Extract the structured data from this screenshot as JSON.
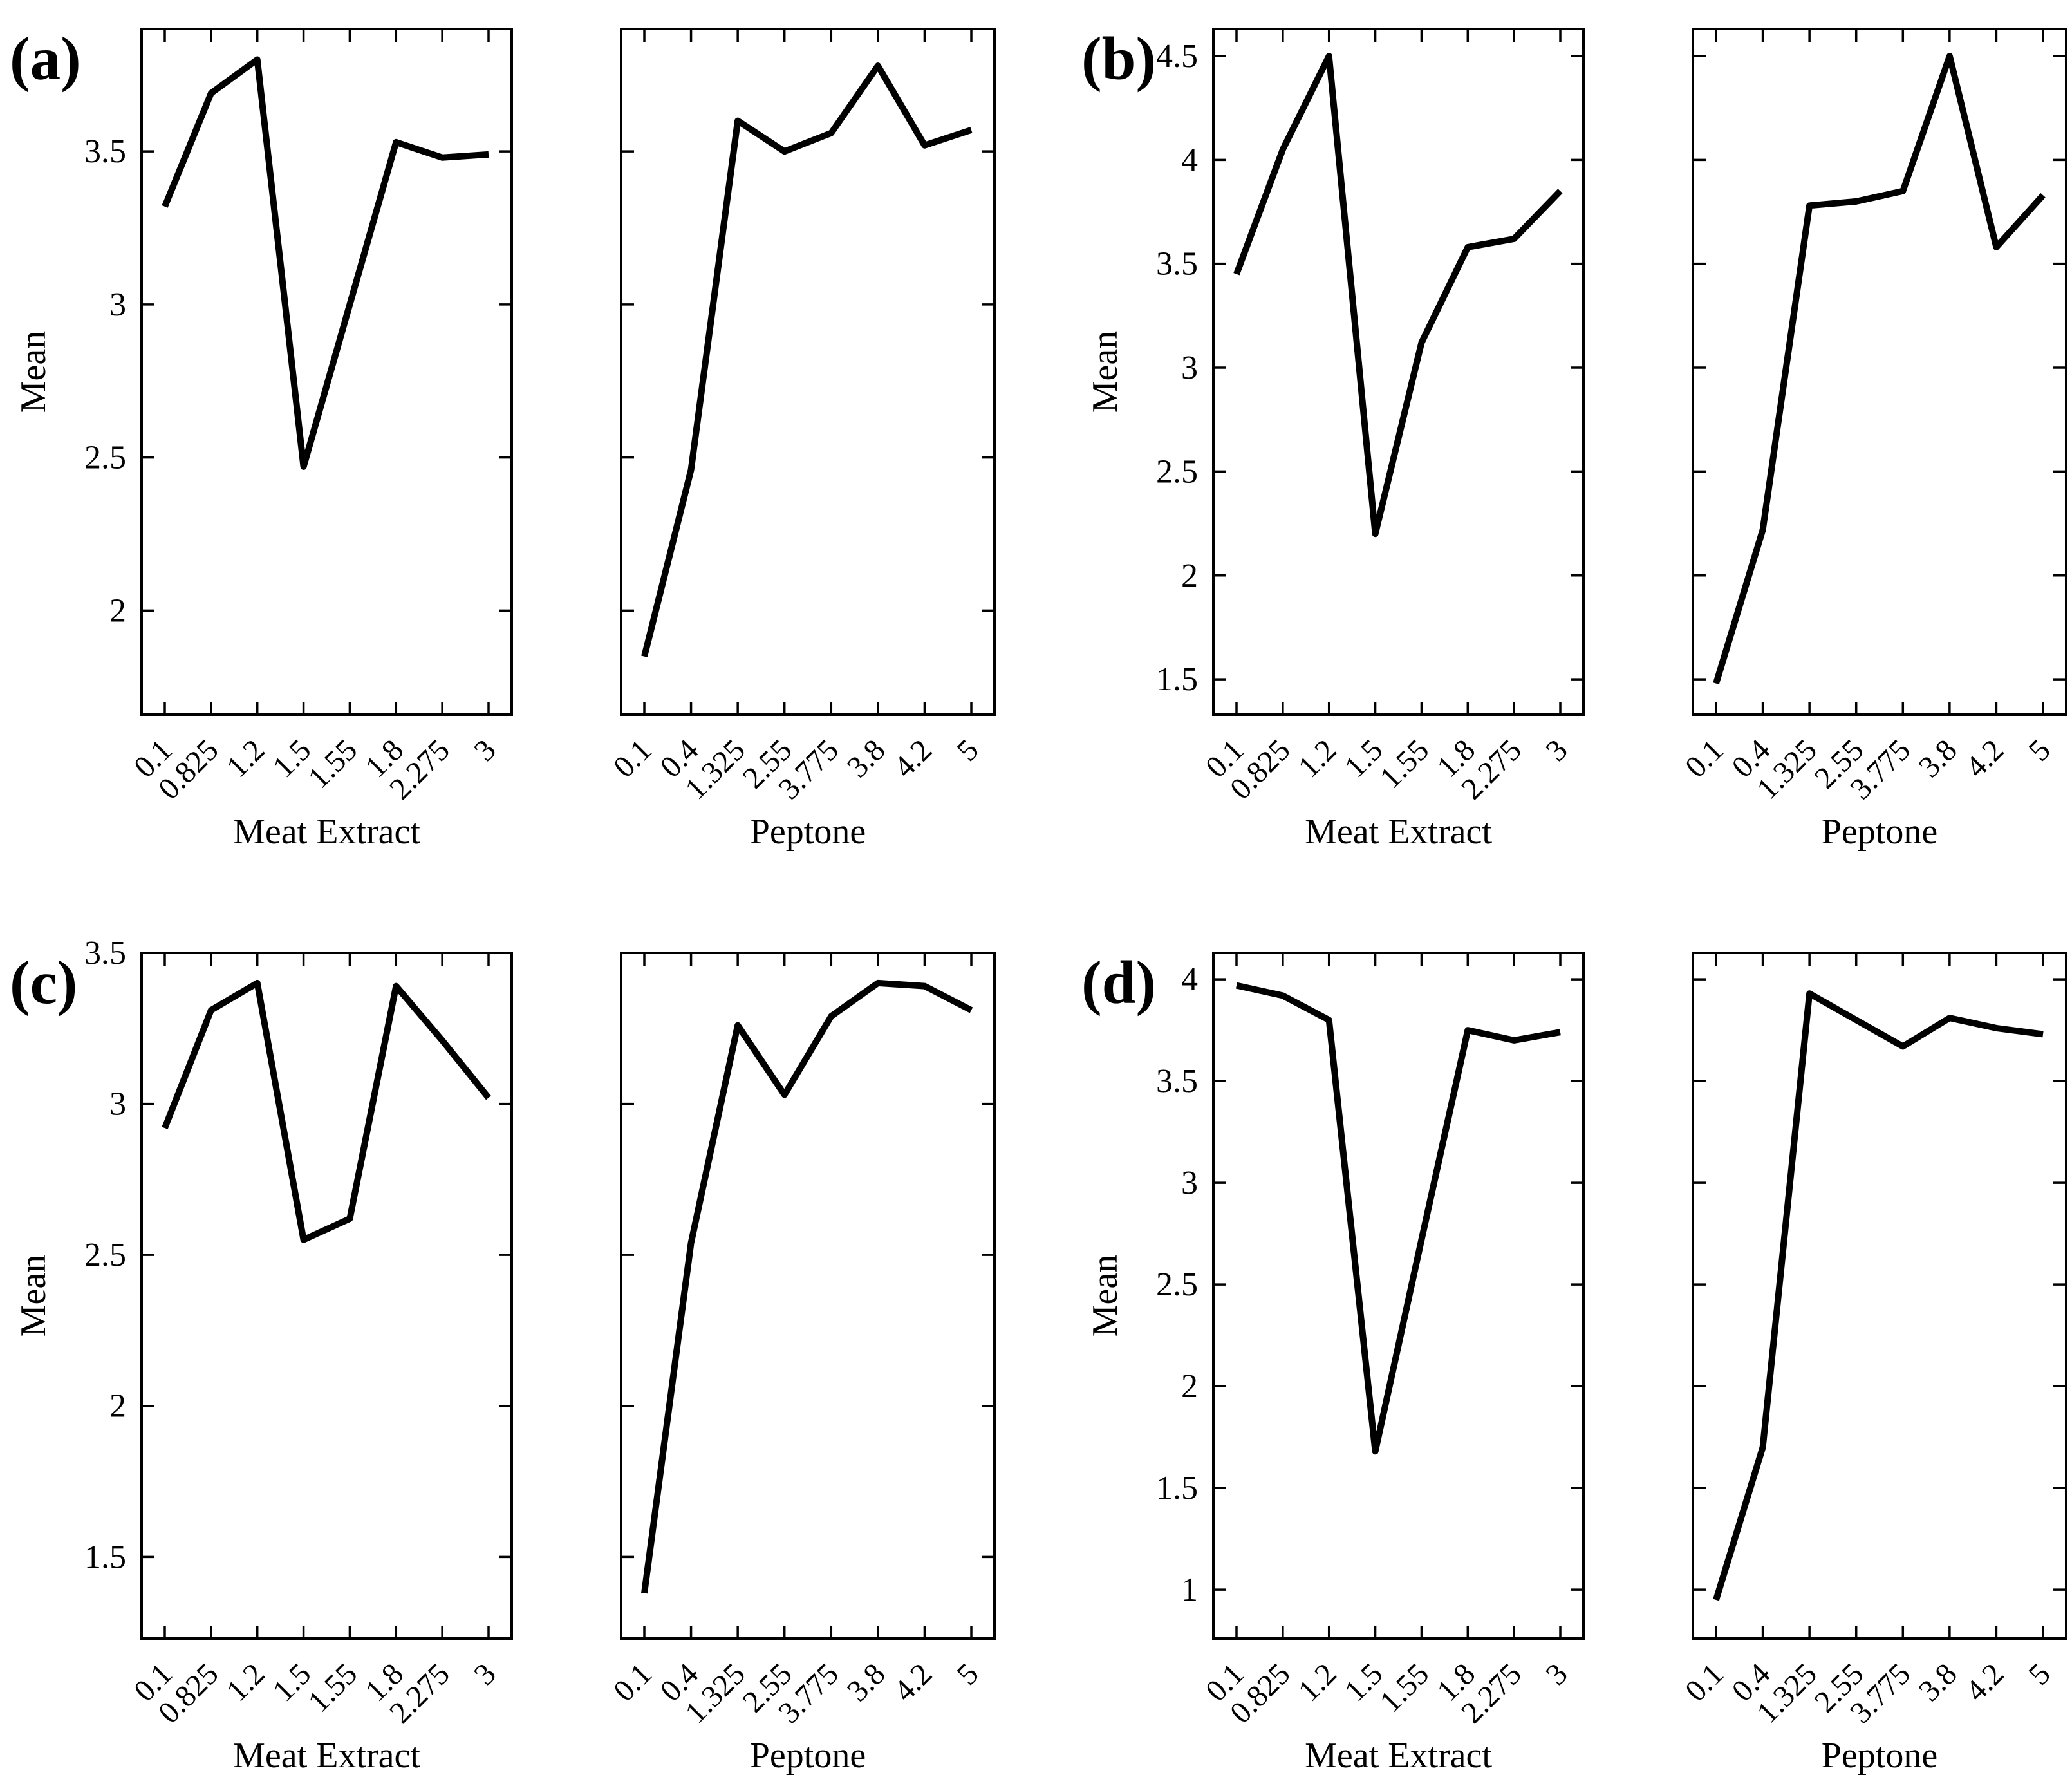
{
  "figure": {
    "background": "#ffffff",
    "line_color": "#000000",
    "ylabel": "Mean",
    "layout": {
      "panel_grid": "2x2",
      "charts_per_panel": 2,
      "grid_lines": false,
      "frame": true,
      "tick_direction": "in",
      "x_tick_label_rotation_deg": 45,
      "legend": "none"
    }
  },
  "chart_data": [
    {
      "panel_label": "(a)",
      "ylabel": "Mean",
      "ylim": [
        1.66,
        3.9
      ],
      "yticks": [
        2,
        2.5,
        3,
        3.5
      ],
      "charts": [
        {
          "type": "line",
          "xlabel": "Meat Extract",
          "categories": [
            "0.1",
            "0.825",
            "1.2",
            "1.5",
            "1.55",
            "1.8",
            "2.275",
            "3"
          ],
          "values": [
            3.32,
            3.69,
            3.8,
            2.47,
            3.0,
            3.53,
            3.48,
            3.49
          ],
          "ytick_labels_visible": true
        },
        {
          "type": "line",
          "xlabel": "Peptone",
          "categories": [
            "0.1",
            "0.4",
            "1.325",
            "2.55",
            "3.775",
            "3.8",
            "4.2",
            "5"
          ],
          "values": [
            1.85,
            2.46,
            3.6,
            3.5,
            3.56,
            3.78,
            3.52,
            3.57
          ],
          "ytick_labels_visible": false
        }
      ]
    },
    {
      "panel_label": "(b)",
      "ylabel": "Mean",
      "ylim": [
        1.33,
        4.63
      ],
      "yticks": [
        1.5,
        2,
        2.5,
        3,
        3.5,
        4,
        4.5
      ],
      "charts": [
        {
          "type": "line",
          "xlabel": "Meat Extract",
          "categories": [
            "0.1",
            "0.825",
            "1.2",
            "1.5",
            "1.55",
            "1.8",
            "2.275",
            "3"
          ],
          "values": [
            3.45,
            4.05,
            4.5,
            2.2,
            3.12,
            3.58,
            3.62,
            3.85
          ],
          "ytick_labels_visible": true
        },
        {
          "type": "line",
          "xlabel": "Peptone",
          "categories": [
            "0.1",
            "0.4",
            "1.325",
            "2.55",
            "3.775",
            "3.8",
            "4.2",
            "5"
          ],
          "values": [
            1.48,
            2.22,
            3.78,
            3.8,
            3.85,
            4.5,
            3.58,
            3.83
          ],
          "ytick_labels_visible": false
        }
      ]
    },
    {
      "panel_label": "(c)",
      "ylabel": "Mean",
      "ylim": [
        1.23,
        3.5
      ],
      "yticks": [
        1.5,
        2,
        2.5,
        3,
        3.5
      ],
      "charts": [
        {
          "type": "line",
          "xlabel": "Meat Extract",
          "categories": [
            "0.1",
            "0.825",
            "1.2",
            "1.5",
            "1.55",
            "1.8",
            "2.275",
            "3"
          ],
          "values": [
            2.92,
            3.31,
            3.4,
            2.55,
            2.62,
            3.39,
            3.21,
            3.02
          ],
          "ytick_labels_visible": true
        },
        {
          "type": "line",
          "xlabel": "Peptone",
          "categories": [
            "0.1",
            "0.4",
            "1.325",
            "2.55",
            "3.775",
            "3.8",
            "4.2",
            "5"
          ],
          "values": [
            1.38,
            2.54,
            3.26,
            3.03,
            3.29,
            3.4,
            3.39,
            3.31
          ],
          "ytick_labels_visible": false
        }
      ]
    },
    {
      "panel_label": "(d)",
      "ylabel": "Mean",
      "ylim": [
        0.76,
        4.13
      ],
      "yticks": [
        1,
        1.5,
        2,
        2.5,
        3,
        3.5,
        4
      ],
      "charts": [
        {
          "type": "line",
          "xlabel": "Meat Extract",
          "categories": [
            "0.1",
            "0.825",
            "1.2",
            "1.5",
            "1.55",
            "1.8",
            "2.275",
            "3"
          ],
          "values": [
            3.97,
            3.92,
            3.8,
            1.68,
            2.72,
            3.75,
            3.7,
            3.74
          ],
          "ytick_labels_visible": true
        },
        {
          "type": "line",
          "xlabel": "Peptone",
          "categories": [
            "0.1",
            "0.4",
            "1.325",
            "2.55",
            "3.775",
            "3.8",
            "4.2",
            "5"
          ],
          "values": [
            0.95,
            1.7,
            3.93,
            3.8,
            3.67,
            3.81,
            3.76,
            3.73
          ],
          "ytick_labels_visible": false
        }
      ]
    }
  ]
}
